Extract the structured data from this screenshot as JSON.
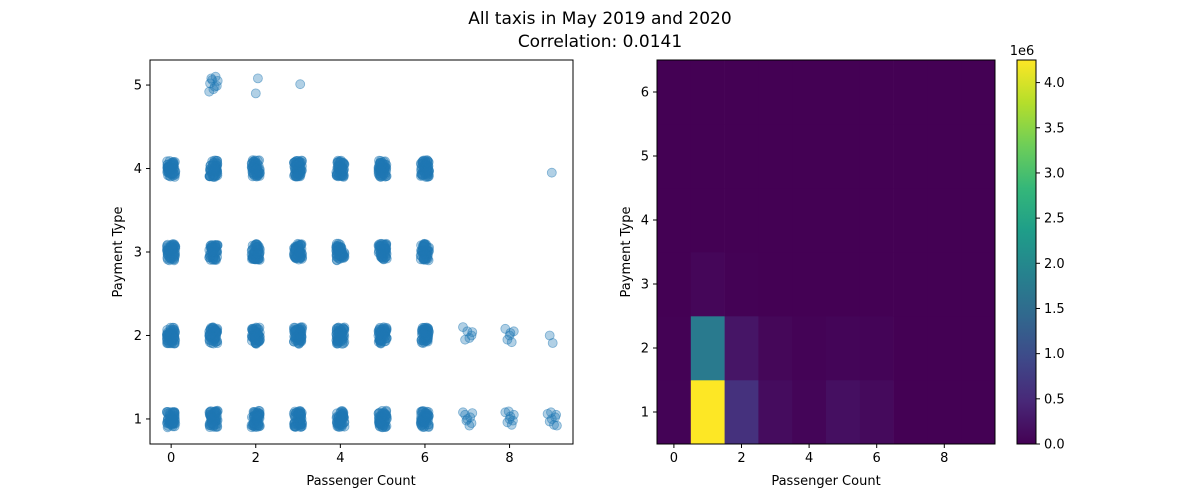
{
  "figure": {
    "title": "All taxis in May 2019 and 2020",
    "subtitle": "Correlation: 0.0141"
  },
  "colors": {
    "scatter_point": "#1f77b4",
    "axis": "#000000",
    "viridis_stops": [
      "#440154",
      "#482878",
      "#3e4989",
      "#31688e",
      "#26828e",
      "#1f9e89",
      "#35b779",
      "#6ece58",
      "#b5de2b",
      "#fde725"
    ]
  },
  "chart_data": [
    {
      "type": "scatter",
      "xlabel": "Passenger Count",
      "ylabel": "Payment Type",
      "xlim": [
        -0.5,
        9.5
      ],
      "ylim": [
        0.7,
        5.3
      ],
      "xticks": [
        "0",
        "2",
        "4",
        "6",
        "8"
      ],
      "xtick_values": [
        0,
        2,
        4,
        6,
        8
      ],
      "yticks": [
        "1",
        "2",
        "3",
        "4",
        "5"
      ],
      "ytick_values": [
        1,
        2,
        3,
        4,
        5
      ],
      "jitter": 0.1,
      "dense_clusters": [
        {
          "x": 0,
          "y": 1
        },
        {
          "x": 1,
          "y": 1
        },
        {
          "x": 2,
          "y": 1
        },
        {
          "x": 3,
          "y": 1
        },
        {
          "x": 4,
          "y": 1
        },
        {
          "x": 5,
          "y": 1
        },
        {
          "x": 6,
          "y": 1
        },
        {
          "x": 0,
          "y": 2
        },
        {
          "x": 1,
          "y": 2
        },
        {
          "x": 2,
          "y": 2
        },
        {
          "x": 3,
          "y": 2
        },
        {
          "x": 4,
          "y": 2
        },
        {
          "x": 5,
          "y": 2
        },
        {
          "x": 6,
          "y": 2
        },
        {
          "x": 0,
          "y": 3
        },
        {
          "x": 1,
          "y": 3
        },
        {
          "x": 2,
          "y": 3
        },
        {
          "x": 3,
          "y": 3
        },
        {
          "x": 4,
          "y": 3
        },
        {
          "x": 5,
          "y": 3
        },
        {
          "x": 6,
          "y": 3
        },
        {
          "x": 0,
          "y": 4
        },
        {
          "x": 1,
          "y": 4
        },
        {
          "x": 2,
          "y": 4
        },
        {
          "x": 3,
          "y": 4
        },
        {
          "x": 4,
          "y": 4
        },
        {
          "x": 5,
          "y": 4
        },
        {
          "x": 6,
          "y": 4
        }
      ],
      "sparse_points": [
        {
          "x": 0.95,
          "y": 5.08
        },
        {
          "x": 1.05,
          "y": 5.1
        },
        {
          "x": 0.92,
          "y": 5.02
        },
        {
          "x": 1.1,
          "y": 5.05
        },
        {
          "x": 1.0,
          "y": 4.95
        },
        {
          "x": 0.9,
          "y": 4.92
        },
        {
          "x": 1.03,
          "y": 4.98
        },
        {
          "x": 0.97,
          "y": 5.06
        },
        {
          "x": 1.08,
          "y": 4.99
        },
        {
          "x": 2.0,
          "y": 4.9
        },
        {
          "x": 2.05,
          "y": 5.08
        },
        {
          "x": 3.05,
          "y": 5.01
        },
        {
          "x": 9.0,
          "y": 3.95
        },
        {
          "x": 6.9,
          "y": 2.1
        },
        {
          "x": 7.0,
          "y": 2.05
        },
        {
          "x": 7.1,
          "y": 2.0
        },
        {
          "x": 6.95,
          "y": 1.95
        },
        {
          "x": 7.05,
          "y": 1.97
        },
        {
          "x": 7.12,
          "y": 2.04
        },
        {
          "x": 7.9,
          "y": 2.08
        },
        {
          "x": 8.0,
          "y": 2.0
        },
        {
          "x": 8.05,
          "y": 1.92
        },
        {
          "x": 8.1,
          "y": 2.05
        },
        {
          "x": 7.95,
          "y": 1.95
        },
        {
          "x": 8.02,
          "y": 2.03
        },
        {
          "x": 8.95,
          "y": 2.0
        },
        {
          "x": 9.02,
          "y": 1.91
        },
        {
          "x": 6.9,
          "y": 1.08
        },
        {
          "x": 7.0,
          "y": 1.0
        },
        {
          "x": 7.1,
          "y": 0.95
        },
        {
          "x": 6.95,
          "y": 1.05
        },
        {
          "x": 7.05,
          "y": 0.92
        },
        {
          "x": 7.12,
          "y": 1.07
        },
        {
          "x": 6.98,
          "y": 0.98
        },
        {
          "x": 7.07,
          "y": 1.02
        },
        {
          "x": 7.9,
          "y": 1.08
        },
        {
          "x": 8.0,
          "y": 1.0
        },
        {
          "x": 8.05,
          "y": 0.93
        },
        {
          "x": 8.1,
          "y": 1.05
        },
        {
          "x": 7.95,
          "y": 0.96
        },
        {
          "x": 8.02,
          "y": 1.03
        },
        {
          "x": 7.98,
          "y": 1.09
        },
        {
          "x": 8.08,
          "y": 0.98
        },
        {
          "x": 8.9,
          "y": 1.06
        },
        {
          "x": 9.0,
          "y": 1.0
        },
        {
          "x": 9.05,
          "y": 0.93
        },
        {
          "x": 9.1,
          "y": 1.05
        },
        {
          "x": 8.95,
          "y": 0.97
        },
        {
          "x": 9.08,
          "y": 1.02
        },
        {
          "x": 9.12,
          "y": 0.92
        },
        {
          "x": 8.98,
          "y": 1.08
        }
      ]
    },
    {
      "type": "heatmap",
      "xlabel": "Passenger Count",
      "ylabel": "Payment Type",
      "xlim": [
        -0.5,
        9.5
      ],
      "ylim": [
        0.5,
        6.5
      ],
      "xticks": [
        "0",
        "2",
        "4",
        "6",
        "8"
      ],
      "xtick_values": [
        0,
        2,
        4,
        6,
        8
      ],
      "yticks": [
        "1",
        "2",
        "3",
        "4",
        "5",
        "6"
      ],
      "ytick_values": [
        1,
        2,
        3,
        4,
        5,
        6
      ],
      "x_bins": [
        0,
        1,
        2,
        3,
        4,
        5,
        6,
        7,
        8,
        9
      ],
      "y_bins": [
        1,
        2,
        3,
        4,
        5,
        6
      ],
      "values": [
        [
          30000,
          4250000,
          600000,
          130000,
          50000,
          170000,
          110000,
          0,
          0,
          0
        ],
        [
          15000,
          1750000,
          240000,
          70000,
          30000,
          50000,
          40000,
          0,
          0,
          0
        ],
        [
          0,
          60000,
          10000,
          5000,
          3000,
          2000,
          1000,
          0,
          0,
          0
        ],
        [
          0,
          0,
          0,
          0,
          0,
          0,
          0,
          0,
          0,
          0
        ],
        [
          0,
          0,
          0,
          0,
          0,
          0,
          0,
          0,
          0,
          0
        ],
        [
          0,
          0,
          0,
          0,
          0,
          0,
          0,
          0,
          0,
          0
        ]
      ],
      "colorbar": {
        "vmin": 0,
        "vmax": 4250000,
        "ticks": [
          "0.0",
          "0.5",
          "1.0",
          "1.5",
          "2.0",
          "2.5",
          "3.0",
          "3.5",
          "4.0"
        ],
        "tick_values": [
          0.0,
          0.5,
          1.0,
          1.5,
          2.0,
          2.5,
          3.0,
          3.5,
          4.0
        ],
        "offset_label": "1e6",
        "colormap": "viridis"
      }
    }
  ]
}
